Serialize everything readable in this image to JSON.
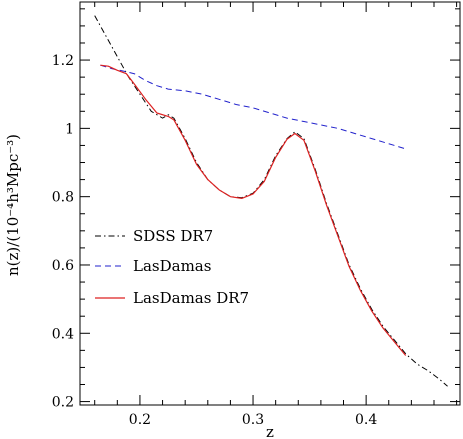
{
  "chart_data": {
    "type": "line",
    "title": "",
    "xlabel": "z",
    "ylabel": "n(z)/(10⁻⁴h³Mpc⁻³)",
    "xlim": [
      0.147,
      0.483
    ],
    "ylim": [
      0.19,
      1.37
    ],
    "xticks": [
      0.2,
      0.3,
      0.4
    ],
    "xtick_labels": [
      "0.2",
      "0.3",
      "0.4"
    ],
    "yticks": [
      0.2,
      0.4,
      0.6,
      0.8,
      1.0,
      1.2
    ],
    "ytick_labels": [
      "0.2",
      "0.4",
      "0.6",
      "0.8",
      "1",
      "1.2"
    ],
    "grid": false,
    "legend_position": "middle-left",
    "series": [
      {
        "name": "SDSS DR7",
        "color": "#000000",
        "style": "dash-dot",
        "points": [
          [
            0.16,
            1.33
          ],
          [
            0.17,
            1.27
          ],
          [
            0.18,
            1.21
          ],
          [
            0.19,
            1.15
          ],
          [
            0.2,
            1.1
          ],
          [
            0.21,
            1.05
          ],
          [
            0.22,
            1.03
          ],
          [
            0.225,
            1.04
          ],
          [
            0.23,
            1.03
          ],
          [
            0.24,
            0.97
          ],
          [
            0.25,
            0.9
          ],
          [
            0.26,
            0.85
          ],
          [
            0.27,
            0.82
          ],
          [
            0.28,
            0.8
          ],
          [
            0.29,
            0.797
          ],
          [
            0.3,
            0.81
          ],
          [
            0.31,
            0.85
          ],
          [
            0.32,
            0.92
          ],
          [
            0.33,
            0.97
          ],
          [
            0.337,
            0.99
          ],
          [
            0.345,
            0.97
          ],
          [
            0.355,
            0.88
          ],
          [
            0.365,
            0.78
          ],
          [
            0.375,
            0.69
          ],
          [
            0.385,
            0.6
          ],
          [
            0.395,
            0.53
          ],
          [
            0.405,
            0.47
          ],
          [
            0.415,
            0.42
          ],
          [
            0.425,
            0.38
          ],
          [
            0.435,
            0.34
          ],
          [
            0.445,
            0.31
          ],
          [
            0.455,
            0.29
          ],
          [
            0.465,
            0.265
          ],
          [
            0.472,
            0.245
          ]
        ]
      },
      {
        "name": "LasDamas",
        "color": "#2222cc",
        "style": "dashed",
        "points": [
          [
            0.165,
            1.185
          ],
          [
            0.175,
            1.175
          ],
          [
            0.185,
            1.168
          ],
          [
            0.195,
            1.16
          ],
          [
            0.205,
            1.14
          ],
          [
            0.215,
            1.125
          ],
          [
            0.225,
            1.115
          ],
          [
            0.24,
            1.11
          ],
          [
            0.255,
            1.1
          ],
          [
            0.27,
            1.085
          ],
          [
            0.285,
            1.07
          ],
          [
            0.3,
            1.06
          ],
          [
            0.315,
            1.045
          ],
          [
            0.33,
            1.03
          ],
          [
            0.345,
            1.02
          ],
          [
            0.36,
            1.01
          ],
          [
            0.375,
            1.0
          ],
          [
            0.39,
            0.985
          ],
          [
            0.405,
            0.97
          ],
          [
            0.42,
            0.955
          ],
          [
            0.435,
            0.94
          ]
        ]
      },
      {
        "name": "LasDamas DR7",
        "color": "#dd2222",
        "style": "solid",
        "points": [
          [
            0.165,
            1.185
          ],
          [
            0.172,
            1.182
          ],
          [
            0.18,
            1.17
          ],
          [
            0.188,
            1.16
          ],
          [
            0.195,
            1.13
          ],
          [
            0.205,
            1.085
          ],
          [
            0.215,
            1.045
          ],
          [
            0.225,
            1.035
          ],
          [
            0.23,
            1.025
          ],
          [
            0.24,
            0.965
          ],
          [
            0.25,
            0.895
          ],
          [
            0.26,
            0.85
          ],
          [
            0.27,
            0.82
          ],
          [
            0.28,
            0.8
          ],
          [
            0.29,
            0.795
          ],
          [
            0.3,
            0.808
          ],
          [
            0.31,
            0.845
          ],
          [
            0.32,
            0.915
          ],
          [
            0.33,
            0.968
          ],
          [
            0.337,
            0.985
          ],
          [
            0.345,
            0.965
          ],
          [
            0.355,
            0.875
          ],
          [
            0.365,
            0.775
          ],
          [
            0.375,
            0.685
          ],
          [
            0.385,
            0.595
          ],
          [
            0.395,
            0.525
          ],
          [
            0.405,
            0.465
          ],
          [
            0.415,
            0.415
          ],
          [
            0.425,
            0.375
          ],
          [
            0.435,
            0.335
          ]
        ]
      }
    ]
  }
}
